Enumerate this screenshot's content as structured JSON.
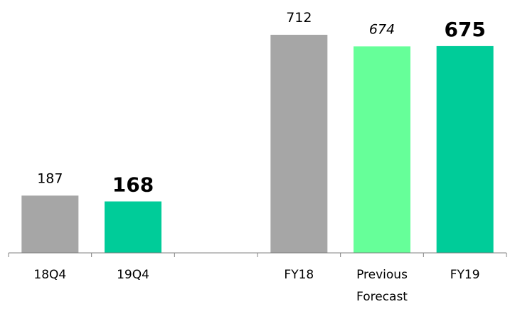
{
  "chart_data": {
    "type": "bar",
    "categories": [
      "18Q4",
      "19Q4",
      "",
      "FY18",
      "Previous Forecast",
      "FY19"
    ],
    "category_lines": [
      [
        "18Q4"
      ],
      [
        "19Q4"
      ],
      [
        ""
      ],
      [
        "FY18"
      ],
      [
        "Previous",
        "Forecast"
      ],
      [
        "FY19"
      ]
    ],
    "values": [
      187,
      168,
      null,
      712,
      674,
      675
    ],
    "value_labels": [
      "187",
      "168",
      "",
      "712",
      "674",
      "675"
    ],
    "label_styles": [
      "normal",
      "bold",
      "none",
      "normal",
      "italic",
      "bold"
    ],
    "colors": [
      "#a6a6a6",
      "#00cc99",
      null,
      "#a6a6a6",
      "#66ff99",
      "#00cc99"
    ],
    "axis_color": "#808080",
    "ylim": [
      0,
      800
    ],
    "title": "",
    "xlabel": "",
    "ylabel": "",
    "grid": false,
    "legend": "none"
  }
}
